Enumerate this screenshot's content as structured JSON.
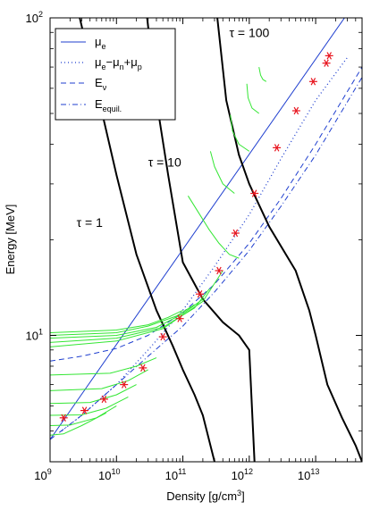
{
  "chart_data": {
    "type": "line",
    "xlabel": "Density [g/cm3]",
    "xlabel_base": "Density [g/cm",
    "xlabel_exp": "3",
    "xlabel_end": "]",
    "ylabel": "Energy [MeV]",
    "xscale": "log",
    "yscale": "log",
    "xlim": [
      1000000000,
      50000000000000
    ],
    "ylim": [
      4,
      100
    ],
    "x_ticks": [
      {
        "value": 1000000000,
        "base": "10",
        "exp": "9"
      },
      {
        "value": 10000000000,
        "base": "10",
        "exp": "10"
      },
      {
        "value": 100000000000,
        "base": "10",
        "exp": "11"
      },
      {
        "value": 1000000000000,
        "base": "10",
        "exp": "12"
      },
      {
        "value": 10000000000000,
        "base": "10",
        "exp": "13"
      }
    ],
    "y_ticks": [
      {
        "value": 10,
        "base": "10",
        "exp": "1"
      },
      {
        "value": 100,
        "base": "10",
        "exp": "2"
      }
    ],
    "grid": false,
    "legend_position": "top-left",
    "legend": [
      {
        "base": "μ",
        "sub": "e",
        "style": "solid",
        "color": "#1f3fcf"
      },
      {
        "base": "μ",
        "sub": "e",
        "mid": "−μ",
        "sub2": "n",
        "mid2": "+μ",
        "sub3": "p",
        "style": "dotted",
        "color": "#1f3fcf"
      },
      {
        "base": "E",
        "sub": "ν",
        "style": "dashed",
        "color": "#1f3fcf"
      },
      {
        "base": "E",
        "sub": "equil.",
        "style": "dashdot",
        "color": "#1f3fcf"
      }
    ],
    "annotations": [
      {
        "text": "τ = 1",
        "x": 2500000000,
        "y": 22
      },
      {
        "text": "τ = 10",
        "x": 30000000000,
        "y": 34
      },
      {
        "text": "τ = 100",
        "x": 500000000000,
        "y": 87
      }
    ],
    "colors": {
      "blue": "#1f3fcf",
      "green": "#33e633",
      "red": "#e8141e",
      "black": "#000000"
    },
    "series": [
      {
        "style": "solid",
        "color": "#1f3fcf",
        "x": [
          1000000000,
          50000000000000
        ],
        "y": [
          4.7,
          120
        ]
      },
      {
        "style": "dotted",
        "color": "#1f3fcf",
        "x": [
          1500000000,
          3000000000,
          10000000000,
          30000000000,
          100000000000,
          300000000000,
          1000000000000,
          3000000000000,
          10000000000000,
          30000000000000
        ],
        "y": [
          5.0,
          5.6,
          7.0,
          9.0,
          12.0,
          16.5,
          24.0,
          36.0,
          55.0,
          75.0
        ]
      },
      {
        "style": "dashed",
        "color": "#1f3fcf",
        "x": [
          1000000000,
          3000000000,
          10000000000,
          30000000000,
          100000000000,
          300000000000,
          1000000000000,
          3000000000000,
          10000000000000,
          50000000000000
        ],
        "y": [
          8.3,
          8.6,
          9.1,
          10.0,
          11.8,
          14.5,
          19.5,
          27.0,
          40.0,
          70.0
        ]
      },
      {
        "style": "dashdot",
        "color": "#1f3fcf",
        "x": [
          1000000000,
          3000000000,
          10000000000,
          30000000000,
          100000000000,
          300000000000,
          1000000000000,
          3000000000000,
          10000000000000,
          50000000000000
        ],
        "y": [
          4.7,
          5.6,
          7.0,
          8.6,
          10.7,
          13.7,
          18.5,
          25.5,
          37.0,
          65.0
        ]
      },
      {
        "style": "tau",
        "label": "τ = 1",
        "color": "#000000",
        "x": [
          2800000000,
          5000000000,
          10000000000,
          20000000000,
          40000000000,
          70000000000,
          100000000000,
          150000000000,
          200000000000,
          300000000000
        ],
        "y": [
          100,
          60,
          32,
          18,
          12,
          9.3,
          7.8,
          6.5,
          5.6,
          4.0
        ]
      },
      {
        "style": "tau",
        "label": "τ = 10",
        "color": "#000000",
        "x": [
          29000000000,
          40000000000,
          60000000000,
          100000000000,
          200000000000,
          400000000000,
          700000000000,
          1000000000000,
          1200000000000
        ],
        "y": [
          100,
          55,
          32,
          17,
          13,
          11,
          10,
          9.0,
          4.0
        ]
      },
      {
        "style": "tau",
        "label": "τ = 100",
        "color": "#000000",
        "x": [
          330000000000,
          450000000000,
          700000000000,
          1000000000000,
          2000000000000,
          5000000000000,
          8000000000000,
          10000000000000,
          15000000000000,
          25000000000000,
          40000000000000,
          50000000000000
        ],
        "y": [
          100,
          55,
          37,
          30,
          22,
          16,
          12,
          10,
          7,
          5.5,
          4.5,
          4.0
        ]
      },
      {
        "style": "green",
        "color": "#33e633",
        "x": [
          1000000000,
          10000000000,
          30000000000,
          60000000000,
          100000000000
        ],
        "y": [
          10.2,
          10.4,
          10.8,
          11.4,
          12.0
        ]
      },
      {
        "style": "green",
        "color": "#33e633",
        "x": [
          1000000000,
          10000000000,
          30000000000,
          80000000000,
          150000000000
        ],
        "y": [
          10.0,
          10.2,
          10.7,
          11.5,
          12.5
        ]
      },
      {
        "style": "green",
        "color": "#33e633",
        "x": [
          1000000000,
          10000000000,
          40000000000,
          100000000000,
          200000000000
        ],
        "y": [
          9.8,
          10.0,
          10.6,
          11.7,
          13.0
        ]
      },
      {
        "style": "green",
        "color": "#33e633",
        "x": [
          1000000000,
          10000000000,
          50000000000,
          150000000000,
          250000000000
        ],
        "y": [
          9.5,
          9.8,
          10.6,
          12.2,
          14.0
        ]
      },
      {
        "style": "green",
        "color": "#33e633",
        "x": [
          1000000000,
          10000000000,
          50000000000,
          200000000000,
          400000000000
        ],
        "y": [
          9.2,
          9.6,
          10.5,
          12.8,
          16.0
        ]
      },
      {
        "style": "green",
        "color": "#33e633",
        "x": [
          1000000000,
          8000000000,
          20000000000,
          40000000000
        ],
        "y": [
          7.5,
          7.6,
          8.0,
          8.5
        ]
      },
      {
        "style": "green",
        "color": "#33e633",
        "x": [
          1000000000,
          6000000000,
          15000000000,
          30000000000
        ],
        "y": [
          6.7,
          6.8,
          7.2,
          7.8
        ]
      },
      {
        "style": "green",
        "color": "#33e633",
        "x": [
          1000000000,
          4000000000,
          10000000000,
          20000000000
        ],
        "y": [
          6.1,
          6.15,
          6.5,
          7.0
        ]
      },
      {
        "style": "green",
        "color": "#33e633",
        "x": [
          1000000000,
          3000000000,
          7000000000,
          15000000000
        ],
        "y": [
          5.6,
          5.62,
          5.9,
          6.4
        ]
      },
      {
        "style": "green",
        "color": "#33e633",
        "x": [
          1000000000,
          2000000000,
          5000000000,
          10000000000
        ],
        "y": [
          5.2,
          5.22,
          5.5,
          6.0
        ]
      },
      {
        "style": "green",
        "color": "#33e633",
        "x": [
          1000000000,
          1600000000,
          3000000000,
          7000000000
        ],
        "y": [
          4.85,
          4.9,
          5.2,
          5.7
        ]
      },
      {
        "style": "green",
        "color": "#33e633",
        "x": [
          120000000000,
          180000000000,
          250000000000,
          350000000000,
          500000000000,
          700000000000
        ],
        "y": [
          27.5,
          24.0,
          21.5,
          19.5,
          18.0,
          17.5
        ]
      },
      {
        "style": "green",
        "color": "#33e633",
        "x": [
          260000000000,
          300000000000,
          400000000000,
          600000000000
        ],
        "y": [
          38.0,
          34.0,
          30.0,
          28.0
        ]
      },
      {
        "style": "green",
        "color": "#33e633",
        "x": [
          520000000000,
          560000000000,
          700000000000,
          1000000000000
        ],
        "y": [
          49.5,
          44.0,
          40.0,
          38.0
        ]
      },
      {
        "style": "green",
        "color": "#33e633",
        "x": [
          920000000000,
          960000000000,
          1100000000000,
          1400000000000
        ],
        "y": [
          62.0,
          56.0,
          52.0,
          50.0
        ]
      },
      {
        "style": "green",
        "color": "#33e633",
        "x": [
          1400000000000,
          1480000000000,
          1600000000000,
          1800000000000
        ],
        "y": [
          70.0,
          66.0,
          64.0,
          63.0
        ]
      }
    ],
    "markers": {
      "symbol": "asterisk",
      "color": "#e8141e",
      "x": [
        1600000000,
        3300000000,
        6500000000,
        13000000000,
        25000000000,
        50000000000,
        90000000000,
        180000000000,
        350000000000,
        620000000000,
        1200000000000,
        2600000000000,
        5100000000000,
        9200000000000,
        14500000000000,
        16000000000000
      ],
      "y": [
        5.5,
        5.8,
        6.3,
        7.0,
        7.9,
        9.9,
        11.3,
        13.5,
        16.0,
        21.0,
        28.0,
        39.0,
        51.0,
        63.0,
        72.0,
        76.0
      ]
    }
  }
}
